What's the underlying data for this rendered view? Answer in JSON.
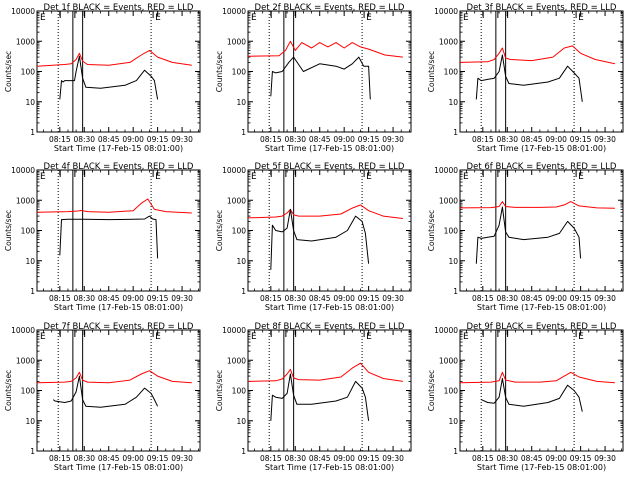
{
  "chart_data": [
    {
      "type": "line",
      "title": "Det 1f BLACK = Events, RED = LLD",
      "xlabel": "Start Time (17-Feb-15 08:01:00)",
      "ylabel": "Counts/sec",
      "xticks": [
        "08:15",
        "08:30",
        "08:45",
        "09:00",
        "09:15",
        "09:30"
      ],
      "xlim": [
        "08:01",
        "09:41"
      ],
      "yscale": "log",
      "ylim": [
        1,
        10000
      ],
      "yticks": [
        "1",
        "10",
        "100",
        "1000",
        "10000"
      ],
      "markers": [
        "08:14",
        "08:23",
        "08:29",
        "09:11"
      ],
      "corner_labels": {
        "left": "E",
        "right": "E"
      },
      "series": [
        {
          "color": "#ff0000",
          "x": [
            "08:01",
            "08:18",
            "08:22",
            "08:25",
            "08:27",
            "08:29",
            "08:32",
            "08:45",
            "08:58",
            "09:05",
            "09:10",
            "09:15",
            "09:24",
            "09:36"
          ],
          "y": [
            150,
            170,
            180,
            250,
            400,
            220,
            170,
            160,
            200,
            350,
            500,
            300,
            200,
            160
          ]
        },
        {
          "color": "#000000",
          "x": [
            "08:15",
            "08:16",
            "08:17",
            "08:18",
            "08:24",
            "08:25",
            "08:27",
            "08:29",
            "08:31",
            "08:40",
            "08:55",
            "09:02",
            "09:07",
            "09:11",
            "09:13",
            "09:15"
          ],
          "y": [
            12,
            50,
            45,
            50,
            50,
            100,
            320,
            60,
            30,
            28,
            35,
            50,
            110,
            70,
            50,
            12
          ]
        }
      ]
    },
    {
      "type": "line",
      "title": "Det 2f BLACK = Events, RED = LLD",
      "xlabel": "Start Time (17-Feb-15 08:01:00)",
      "ylabel": "Counts/sec",
      "xticks": [
        "08:15",
        "08:30",
        "08:45",
        "09:00",
        "09:15",
        "09:30"
      ],
      "xlim": [
        "08:01",
        "09:41"
      ],
      "yscale": "log",
      "ylim": [
        1,
        10000
      ],
      "yticks": [
        "1",
        "10",
        "100",
        "1000",
        "10000"
      ],
      "markers": [
        "08:14",
        "08:23",
        "08:29",
        "09:11"
      ],
      "corner_labels": {
        "left": "E",
        "right": "E"
      },
      "series": [
        {
          "color": "#ff0000",
          "x": [
            "08:01",
            "08:20",
            "08:24",
            "08:27",
            "08:30",
            "08:34",
            "08:40",
            "08:45",
            "08:50",
            "08:55",
            "09:00",
            "09:05",
            "09:10",
            "09:15",
            "09:25",
            "09:36"
          ],
          "y": [
            320,
            330,
            500,
            1000,
            500,
            900,
            600,
            900,
            650,
            900,
            600,
            900,
            650,
            550,
            350,
            300
          ]
        },
        {
          "color": "#000000",
          "x": [
            "08:15",
            "08:16",
            "08:18",
            "08:22",
            "08:26",
            "08:29",
            "08:35",
            "08:45",
            "08:55",
            "09:00",
            "09:05",
            "09:09",
            "09:12",
            "09:15",
            "09:16"
          ],
          "y": [
            15,
            100,
            90,
            100,
            200,
            300,
            100,
            180,
            150,
            120,
            180,
            300,
            150,
            150,
            12
          ]
        }
      ]
    },
    {
      "type": "line",
      "title": "Det 3f BLACK = Events, RED = LLD",
      "xlabel": "Start Time (17-Feb-15 08:01:00)",
      "ylabel": "Counts/sec",
      "xticks": [
        "08:15",
        "08:30",
        "08:45",
        "09:00",
        "09:15",
        "09:30"
      ],
      "xlim": [
        "08:01",
        "09:41"
      ],
      "yscale": "log",
      "ylim": [
        1,
        10000
      ],
      "yticks": [
        "1",
        "10",
        "100",
        "1000",
        "10000"
      ],
      "markers": [
        "08:14",
        "08:23",
        "08:29",
        "09:11"
      ],
      "corner_labels": {
        "left": "E",
        "right": "E"
      },
      "series": [
        {
          "color": "#ff0000",
          "x": [
            "08:01",
            "08:18",
            "08:22",
            "08:25",
            "08:27",
            "08:29",
            "08:32",
            "08:45",
            "08:58",
            "09:05",
            "09:10",
            "09:15",
            "09:24",
            "09:36"
          ],
          "y": [
            200,
            210,
            250,
            400,
            600,
            280,
            250,
            230,
            300,
            600,
            700,
            400,
            250,
            180
          ]
        },
        {
          "color": "#000000",
          "x": [
            "08:11",
            "08:12",
            "08:14",
            "08:18",
            "08:22",
            "08:25",
            "08:27",
            "08:29",
            "08:31",
            "08:40",
            "08:55",
            "09:02",
            "09:07",
            "09:11",
            "09:14",
            "09:16"
          ],
          "y": [
            12,
            60,
            50,
            55,
            60,
            100,
            350,
            70,
            40,
            35,
            45,
            60,
            150,
            90,
            60,
            10
          ]
        }
      ]
    },
    {
      "type": "line",
      "title": "Det 4f BLACK = Events, RED = LLD",
      "xlabel": "Start Time (17-Feb-15 08:01:00)",
      "ylabel": "Counts/sec",
      "xticks": [
        "08:15",
        "08:30",
        "08:45",
        "09:00",
        "09:15",
        "09:30"
      ],
      "xlim": [
        "08:01",
        "09:41"
      ],
      "yscale": "log",
      "ylim": [
        1,
        10000
      ],
      "yticks": [
        "1",
        "10",
        "100",
        "1000",
        "10000"
      ],
      "markers": [
        "08:14",
        "08:23",
        "08:29",
        "09:11"
      ],
      "corner_labels": {
        "left": "E",
        "right": "E"
      },
      "series": [
        {
          "color": "#ff0000",
          "x": [
            "08:01",
            "08:20",
            "08:26",
            "08:28",
            "08:32",
            "08:45",
            "09:00",
            "09:05",
            "09:09",
            "09:13",
            "09:20",
            "09:36"
          ],
          "y": [
            400,
            420,
            440,
            460,
            420,
            400,
            450,
            800,
            1100,
            500,
            420,
            380
          ]
        },
        {
          "color": "#000000",
          "x": [
            "08:15",
            "08:16",
            "08:20",
            "08:30",
            "08:45",
            "09:00",
            "09:07",
            "09:10",
            "09:12",
            "09:14",
            "09:15"
          ],
          "y": [
            15,
            230,
            235,
            235,
            230,
            235,
            240,
            300,
            240,
            230,
            12
          ]
        }
      ]
    },
    {
      "type": "line",
      "title": "Det 5f BLACK = Events, RED = LLD",
      "xlabel": "Start Time (17-Feb-15 08:01:00)",
      "ylabel": "Counts/sec",
      "xticks": [
        "08:15",
        "08:30",
        "08:45",
        "09:00",
        "09:15",
        "09:30"
      ],
      "xlim": [
        "08:01",
        "09:41"
      ],
      "yscale": "log",
      "ylim": [
        1,
        10000
      ],
      "yticks": [
        "1",
        "10",
        "100",
        "1000",
        "10000"
      ],
      "markers": [
        "08:14",
        "08:23",
        "08:29",
        "09:11"
      ],
      "corner_labels": {
        "left": "E",
        "right": "E"
      },
      "series": [
        {
          "color": "#ff0000",
          "x": [
            "08:01",
            "08:18",
            "08:22",
            "08:25",
            "08:27",
            "08:29",
            "08:32",
            "08:45",
            "08:58",
            "09:05",
            "09:10",
            "09:15",
            "09:24",
            "09:36"
          ],
          "y": [
            260,
            280,
            300,
            380,
            500,
            330,
            300,
            300,
            350,
            550,
            700,
            450,
            300,
            250
          ]
        },
        {
          "color": "#000000",
          "x": [
            "08:15",
            "08:16",
            "08:18",
            "08:22",
            "08:25",
            "08:27",
            "08:29",
            "08:31",
            "08:40",
            "08:55",
            "09:02",
            "09:07",
            "09:11",
            "09:13",
            "09:15"
          ],
          "y": [
            5,
            150,
            100,
            90,
            120,
            500,
            100,
            50,
            45,
            60,
            100,
            300,
            200,
            80,
            8
          ]
        }
      ]
    },
    {
      "type": "line",
      "title": "Det 6f BLACK = Events, RED = LLD",
      "xlabel": "Start Time (17-Feb-15 08:01:00)",
      "ylabel": "Counts/sec",
      "xticks": [
        "08:15",
        "08:30",
        "08:45",
        "09:00",
        "09:15",
        "09:30"
      ],
      "xlim": [
        "08:01",
        "09:41"
      ],
      "yscale": "log",
      "ylim": [
        1,
        10000
      ],
      "yticks": [
        "1",
        "10",
        "100",
        "1000",
        "10000"
      ],
      "markers": [
        "08:14",
        "08:23",
        "08:29",
        "09:11"
      ],
      "corner_labels": {
        "left": "E",
        "right": "E"
      },
      "series": [
        {
          "color": "#ff0000",
          "x": [
            "08:01",
            "08:20",
            "08:25",
            "08:27",
            "08:29",
            "08:35",
            "08:50",
            "09:00",
            "09:05",
            "09:09",
            "09:14",
            "09:25",
            "09:36"
          ],
          "y": [
            560,
            570,
            620,
            900,
            620,
            580,
            580,
            600,
            700,
            900,
            650,
            560,
            540
          ]
        },
        {
          "color": "#000000",
          "x": [
            "08:11",
            "08:12",
            "08:14",
            "08:18",
            "08:22",
            "08:25",
            "08:27",
            "08:29",
            "08:31",
            "08:40",
            "08:55",
            "09:02",
            "09:07",
            "09:11",
            "09:14",
            "09:15"
          ],
          "y": [
            8,
            60,
            55,
            60,
            65,
            150,
            600,
            90,
            60,
            50,
            60,
            80,
            200,
            120,
            60,
            12
          ]
        }
      ]
    },
    {
      "type": "line",
      "title": "Det 7f BLACK = Events, RED = LLD",
      "xlabel": "Start Time (17-Feb-15 08:01:00)",
      "ylabel": "Counts/sec",
      "xticks": [
        "08:15",
        "08:30",
        "08:45",
        "09:00",
        "09:15",
        "09:30"
      ],
      "xlim": [
        "08:01",
        "09:41"
      ],
      "yscale": "log",
      "ylim": [
        1,
        10000
      ],
      "yticks": [
        "1",
        "10",
        "100",
        "1000",
        "10000"
      ],
      "markers": [
        "08:14",
        "08:23",
        "08:29",
        "09:11"
      ],
      "corner_labels": {
        "left": "E",
        "right": "E"
      },
      "series": [
        {
          "color": "#ff0000",
          "x": [
            "08:01",
            "08:18",
            "08:22",
            "08:25",
            "08:27",
            "08:29",
            "08:32",
            "08:45",
            "08:58",
            "09:05",
            "09:10",
            "09:15",
            "09:24",
            "09:36"
          ],
          "y": [
            180,
            190,
            200,
            260,
            400,
            220,
            190,
            180,
            220,
            350,
            450,
            300,
            200,
            180
          ]
        },
        {
          "color": "#000000",
          "x": [
            "08:11",
            "08:12",
            "08:18",
            "08:22",
            "08:25",
            "08:27",
            "08:29",
            "08:31",
            "08:40",
            "08:55",
            "09:02",
            "09:07",
            "09:11",
            "09:13",
            "09:15"
          ],
          "y": [
            50,
            45,
            40,
            45,
            90,
            300,
            50,
            30,
            28,
            35,
            60,
            120,
            80,
            50,
            30
          ]
        }
      ]
    },
    {
      "type": "line",
      "title": "Det 8f BLACK = Events, RED = LLD",
      "xlabel": "Start Time (17-Feb-15 08:01:00)",
      "ylabel": "Counts/sec",
      "xticks": [
        "08:15",
        "08:30",
        "08:45",
        "09:00",
        "09:15",
        "09:30"
      ],
      "xlim": [
        "08:01",
        "09:41"
      ],
      "yscale": "log",
      "ylim": [
        1,
        10000
      ],
      "yticks": [
        "1",
        "10",
        "100",
        "1000",
        "10000"
      ],
      "markers": [
        "08:14",
        "08:23",
        "08:29",
        "09:11"
      ],
      "corner_labels": {
        "left": "E",
        "right": "E"
      },
      "series": [
        {
          "color": "#ff0000",
          "x": [
            "08:01",
            "08:18",
            "08:22",
            "08:25",
            "08:27",
            "08:29",
            "08:32",
            "08:45",
            "08:58",
            "09:05",
            "09:10",
            "09:15",
            "09:24",
            "09:36"
          ],
          "y": [
            200,
            210,
            240,
            350,
            500,
            260,
            230,
            220,
            280,
            550,
            800,
            400,
            250,
            200
          ]
        },
        {
          "color": "#000000",
          "x": [
            "08:15",
            "08:16",
            "08:18",
            "08:22",
            "08:25",
            "08:27",
            "08:29",
            "08:31",
            "08:40",
            "08:55",
            "09:02",
            "09:07",
            "09:11",
            "09:13",
            "09:15"
          ],
          "y": [
            10,
            70,
            60,
            55,
            80,
            350,
            70,
            35,
            35,
            45,
            60,
            200,
            120,
            60,
            10
          ]
        }
      ]
    },
    {
      "type": "line",
      "title": "Det 9f BLACK = Events, RED = LLD",
      "xlabel": "Start Time (17-Feb-15 08:01:00)",
      "ylabel": "Counts/sec",
      "xticks": [
        "08:15",
        "08:30",
        "08:45",
        "09:00",
        "09:15",
        "09:30"
      ],
      "xlim": [
        "08:01",
        "09:41"
      ],
      "yscale": "log",
      "ylim": [
        1,
        10000
      ],
      "yticks": [
        "1",
        "10",
        "100",
        "1000",
        "10000"
      ],
      "markers": [
        "08:14",
        "08:23",
        "08:29",
        "09:11"
      ],
      "corner_labels": {
        "left": "E",
        "right": "E"
      },
      "series": [
        {
          "color": "#ff0000",
          "x": [
            "08:01",
            "08:20",
            "08:25",
            "08:27",
            "08:29",
            "08:35",
            "08:50",
            "09:00",
            "09:05",
            "09:09",
            "09:14",
            "09:25",
            "09:36"
          ],
          "y": [
            180,
            190,
            210,
            400,
            220,
            190,
            190,
            210,
            300,
            400,
            280,
            200,
            180
          ]
        },
        {
          "color": "#000000",
          "x": [
            "08:14",
            "08:18",
            "08:22",
            "08:25",
            "08:27",
            "08:29",
            "08:31",
            "08:40",
            "08:55",
            "09:02",
            "09:07",
            "09:11",
            "09:14",
            "09:16"
          ],
          "y": [
            50,
            40,
            38,
            60,
            250,
            60,
            35,
            30,
            40,
            55,
            150,
            100,
            60,
            20
          ]
        }
      ]
    }
  ]
}
